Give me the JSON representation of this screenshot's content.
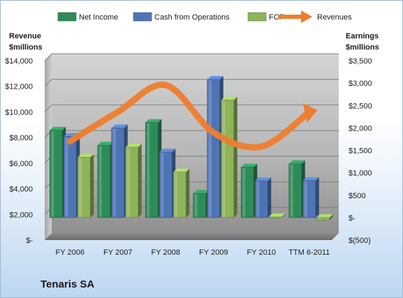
{
  "chart_data": {
    "type": "bar",
    "categories": [
      "FY 2006",
      "FY 2007",
      "FY 2008",
      "FY 2009",
      "FY 2010",
      "TTM 6-2011"
    ],
    "series": [
      {
        "name": "Net Income",
        "axis": "right",
        "kind": "bar",
        "color": "#2e8b57",
        "values": [
          1945,
          1615,
          2120,
          540,
          1125,
          1200
        ]
      },
      {
        "name": "Cash from Operations",
        "axis": "right",
        "kind": "bar",
        "color": "#4f74b4",
        "values": [
          1810,
          2000,
          1460,
          3080,
          820,
          825
        ]
      },
      {
        "name": "FCF",
        "axis": "right",
        "kind": "bar",
        "color": "#8fb35a",
        "values": [
          1345,
          1570,
          1015,
          2620,
          15,
          -60
        ]
      },
      {
        "name": "Revenues",
        "axis": "left",
        "kind": "arrow",
        "color": "#ee7d2e",
        "values": [
          7700,
          10000,
          12100,
          8400,
          7300,
          10000
        ]
      }
    ],
    "y_left": {
      "label_lines": [
        "Revenue",
        "$millions"
      ],
      "range": [
        0,
        14000
      ],
      "ticks": [
        0,
        2000,
        4000,
        6000,
        8000,
        10000,
        12000,
        14000
      ],
      "tick_labels": [
        "$-",
        "$2,000",
        "$4,000",
        "$6,000",
        "$8,000",
        "$10,000",
        "$12,000",
        "$14,000"
      ]
    },
    "y_right": {
      "label_lines": [
        "Earnings",
        "$millions"
      ],
      "range": [
        -500,
        3500
      ],
      "ticks": [
        -500,
        0,
        500,
        1000,
        1500,
        2000,
        2500,
        3000,
        3500
      ],
      "tick_labels": [
        "$(500)",
        "$-",
        "$500",
        "$1,000",
        "$1,500",
        "$2,000",
        "$2,500",
        "$3,000",
        "$3,500"
      ]
    },
    "legend_position": "top",
    "grid": true
  },
  "caption": "Tenaris SA"
}
